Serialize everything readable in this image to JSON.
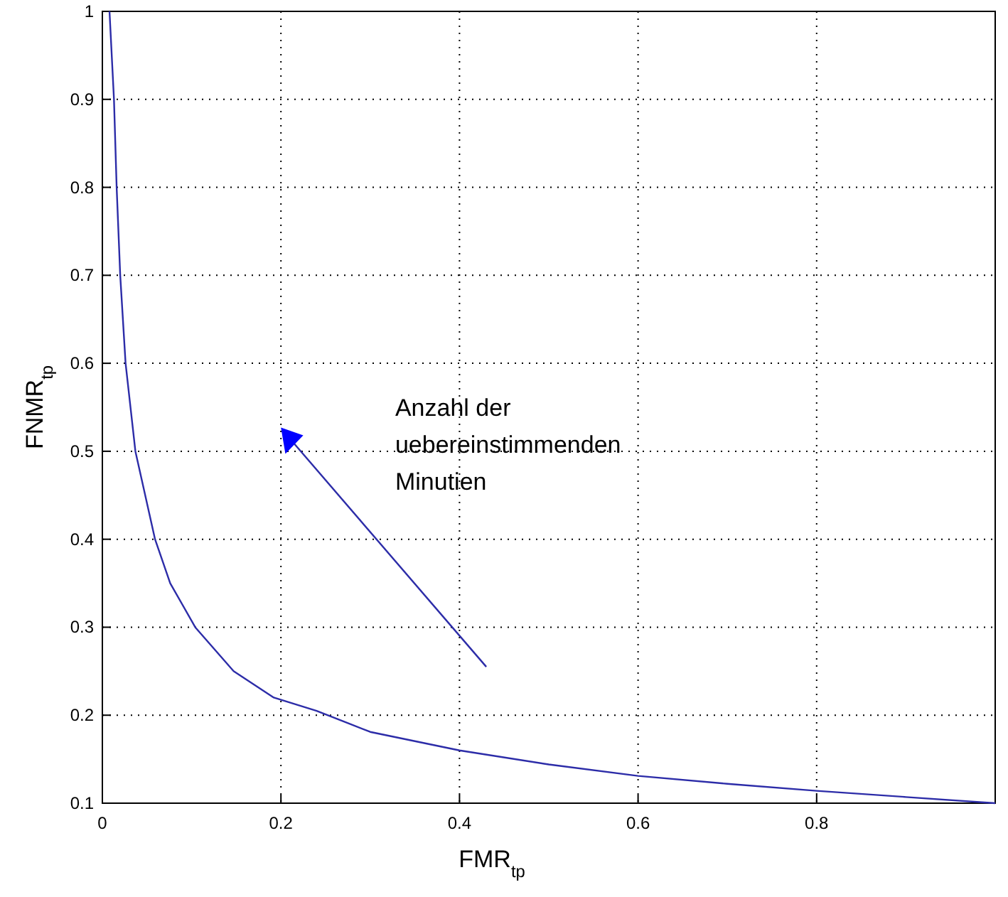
{
  "chart_data": {
    "type": "line",
    "xlabel": "FMR$_{tp}$",
    "ylabel": "FNMR$_{tp}$",
    "x": [
      0.008,
      0.013,
      0.016,
      0.02,
      0.026,
      0.037,
      0.059,
      0.076,
      0.104,
      0.147,
      0.192,
      0.24,
      0.3,
      0.4,
      0.5,
      0.6,
      0.7,
      0.8,
      0.9,
      1
    ],
    "series": [
      {
        "color": "#2c2ca8",
        "values": [
          1,
          0.9,
          0.8,
          0.7,
          0.6,
          0.5,
          0.4,
          0.35,
          0.3,
          0.25,
          0.22,
          0.205,
          0.181,
          0.16,
          0.144,
          0.131,
          0.122,
          0.114,
          0.107,
          0.1
        ]
      }
    ],
    "xlim": [
      0,
      1
    ],
    "ylim": [
      0.1,
      1
    ],
    "xticks": [
      0,
      0.2,
      0.4,
      0.6,
      0.8,
      {
        "value": 1,
        "label": null
      }
    ],
    "yticks": [
      0.1,
      0.2,
      0.3,
      0.4,
      0.5,
      0.6,
      0.7,
      0.8,
      0.9,
      1
    ],
    "grid": true,
    "marker": "none",
    "line_style": "solid",
    "annotations": [
      "Anzahl der uebereinstimmenden Minutien"
    ]
  }
}
